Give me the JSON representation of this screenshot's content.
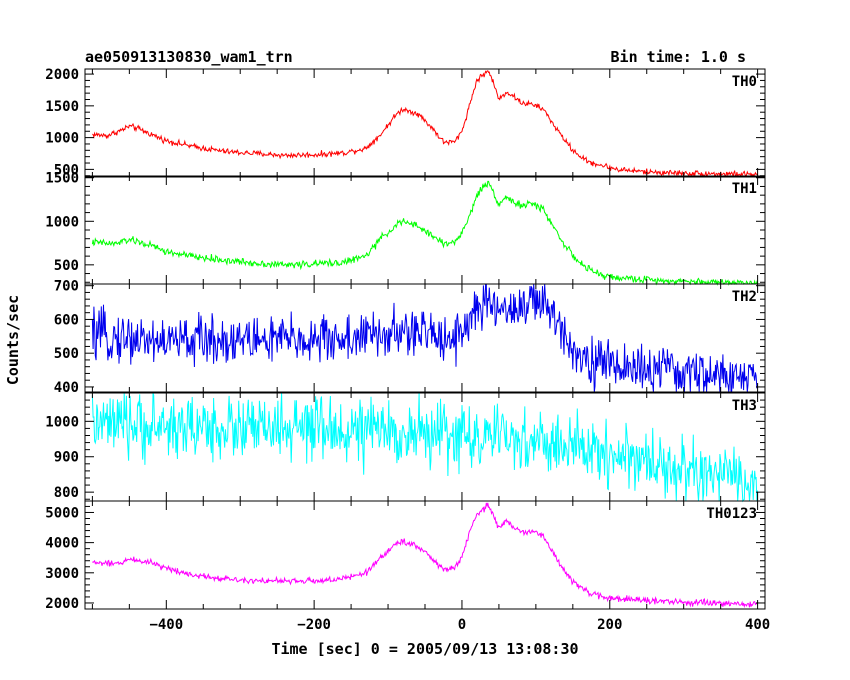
{
  "chart_data": {
    "type": "line",
    "title": "ae050913130830_wam1_trn",
    "subtitle": "Bin time: 1.0 s",
    "xlabel": "Time [sec] 0 = 2005/09/13 13:08:30",
    "ylabel": "Counts/sec",
    "xlim": [
      -510,
      410
    ],
    "xticks": [
      -400,
      -200,
      0,
      200,
      400
    ],
    "xtick_labels": [
      "−400",
      "−200",
      "0",
      "200",
      "400"
    ],
    "grid": false,
    "panels": [
      {
        "name": "TH0",
        "color": "#ff0000",
        "noise": 22,
        "ylim": [
          380,
          2080
        ],
        "yticks": [
          500,
          1000,
          1500,
          2000
        ],
        "x": [
          -500,
          -480,
          -460,
          -450,
          -440,
          -420,
          -400,
          -360,
          -320,
          -280,
          -240,
          -200,
          -160,
          -130,
          -110,
          -90,
          -80,
          -60,
          -40,
          -25,
          -10,
          0,
          10,
          20,
          35,
          40,
          50,
          60,
          70,
          80,
          95,
          110,
          130,
          150,
          170,
          190,
          210,
          250,
          300,
          350,
          400
        ],
        "values": [
          1050,
          1030,
          1120,
          1180,
          1150,
          1050,
          950,
          850,
          780,
          750,
          720,
          730,
          760,
          830,
          1050,
          1350,
          1450,
          1380,
          1150,
          930,
          930,
          1100,
          1500,
          1900,
          2050,
          1950,
          1600,
          1720,
          1650,
          1550,
          1520,
          1450,
          1100,
          800,
          620,
          560,
          500,
          460,
          440,
          430,
          420
        ]
      },
      {
        "name": "TH1",
        "color": "#00ff00",
        "noise": 20,
        "ylim": [
          280,
          1520
        ],
        "yticks": [
          500,
          1000,
          1500
        ],
        "x": [
          -500,
          -470,
          -450,
          -420,
          -400,
          -360,
          -320,
          -280,
          -240,
          -200,
          -160,
          -130,
          -110,
          -90,
          -80,
          -60,
          -40,
          -25,
          -10,
          0,
          10,
          20,
          35,
          40,
          50,
          60,
          70,
          80,
          95,
          110,
          130,
          150,
          170,
          190,
          210,
          250,
          300,
          350,
          400
        ],
        "values": [
          760,
          740,
          790,
          720,
          650,
          590,
          550,
          520,
          500,
          510,
          530,
          600,
          800,
          950,
          1000,
          940,
          840,
          740,
          760,
          870,
          1050,
          1300,
          1450,
          1380,
          1200,
          1280,
          1220,
          1180,
          1200,
          1140,
          850,
          600,
          450,
          380,
          350,
          330,
          310,
          300,
          290
        ]
      },
      {
        "name": "TH2",
        "color": "#0000ee",
        "noise": 36,
        "ylim": [
          385,
          705
        ],
        "yticks": [
          400,
          500,
          600,
          700
        ],
        "x": [
          -500,
          -450,
          -400,
          -350,
          -300,
          -250,
          -200,
          -150,
          -100,
          -60,
          -30,
          -10,
          0,
          20,
          40,
          60,
          80,
          100,
          120,
          140,
          160,
          190,
          220,
          260,
          300,
          350,
          400
        ],
        "values": [
          550,
          545,
          535,
          540,
          540,
          540,
          540,
          545,
          555,
          560,
          555,
          545,
          570,
          630,
          640,
          630,
          640,
          650,
          620,
          560,
          490,
          470,
          460,
          450,
          440,
          430,
          420
        ]
      },
      {
        "name": "TH3",
        "color": "#00ffff",
        "noise": 45,
        "ylim": [
          775,
          1080
        ],
        "yticks": [
          800,
          900,
          1000
        ],
        "x": [
          -500,
          -400,
          -300,
          -200,
          -100,
          0,
          100,
          200,
          250,
          300,
          350,
          400
        ],
        "values": [
          990,
          985,
          980,
          975,
          970,
          960,
          940,
          910,
          890,
          860,
          840,
          820
        ]
      },
      {
        "name": "TH0123",
        "color": "#ff00ff",
        "noise": 50,
        "ylim": [
          1800,
          5380
        ],
        "yticks": [
          2000,
          3000,
          4000,
          5000
        ],
        "x": [
          -500,
          -470,
          -450,
          -420,
          -400,
          -360,
          -320,
          -280,
          -240,
          -200,
          -160,
          -130,
          -110,
          -90,
          -80,
          -60,
          -40,
          -25,
          -10,
          0,
          10,
          20,
          35,
          40,
          50,
          60,
          70,
          80,
          95,
          110,
          130,
          150,
          170,
          190,
          210,
          250,
          300,
          350,
          400
        ],
        "values": [
          3350,
          3280,
          3450,
          3350,
          3150,
          2920,
          2800,
          2750,
          2720,
          2730,
          2800,
          3000,
          3500,
          3950,
          4050,
          3900,
          3450,
          3100,
          3150,
          3550,
          4300,
          4900,
          5250,
          5050,
          4500,
          4700,
          4500,
          4350,
          4400,
          4200,
          3400,
          2700,
          2350,
          2200,
          2150,
          2080,
          2020,
          1980,
          1950
        ]
      }
    ]
  }
}
